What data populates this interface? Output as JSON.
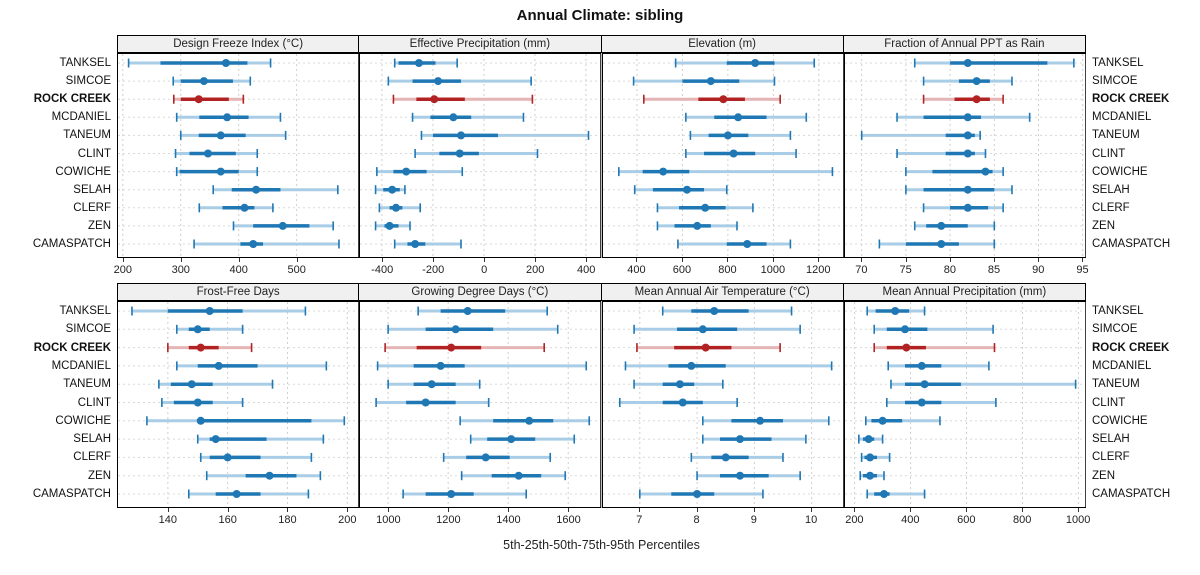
{
  "title": "Annual Climate: sibling",
  "caption": "5th-25th-50th-75th-95th Percentiles",
  "colors": {
    "normal": "#1f77b4",
    "normal_light": "#a9cde6",
    "highlight": "#b22222",
    "highlight_light": "#e5b4b4",
    "grid": "#cfcfcf",
    "panel_border": "#000000",
    "header_bg": "#f0f0f0"
  },
  "chart_data": {
    "type": "dotplot-percentiles",
    "title": "Annual Climate: sibling",
    "xlabel": "5th-25th-50th-75th-95th Percentiles",
    "percentile_labels": [
      "5th",
      "25th",
      "50th",
      "75th",
      "95th"
    ],
    "sites": [
      "TANKSEL",
      "SIMCOE",
      "ROCK CREEK",
      "MCDANIEL",
      "TANEUM",
      "CLINT",
      "COWICHE",
      "SELAH",
      "CLERF",
      "ZEN",
      "CAMASPATCH"
    ],
    "highlight_site": "ROCK CREEK",
    "grid": "dashed horizontal and vertical",
    "panels": [
      {
        "title": "Design Freeze Index (°C)",
        "grid_row": 0,
        "grid_col": 0,
        "xlim": [
          190,
          608
        ],
        "ticks": [
          200,
          300,
          400,
          500
        ],
        "series": [
          {
            "site": "TANKSEL",
            "p": [
              210,
              265,
              378,
              415,
              455
            ]
          },
          {
            "site": "SIMCOE",
            "p": [
              287,
              300,
              340,
              390,
              420
            ]
          },
          {
            "site": "ROCK CREEK",
            "p": [
              288,
              300,
              331,
              383,
              408
            ]
          },
          {
            "site": "MCDANIEL",
            "p": [
              293,
              332,
              380,
              417,
              472
            ]
          },
          {
            "site": "TANEUM",
            "p": [
              300,
              331,
              369,
              412,
              481
            ]
          },
          {
            "site": "CLINT",
            "p": [
              291,
              315,
              347,
              395,
              432
            ]
          },
          {
            "site": "COWICHE",
            "p": [
              293,
              298,
              369,
              400,
              432
            ]
          },
          {
            "site": "SELAH",
            "p": [
              356,
              388,
              430,
              472,
              571
            ]
          },
          {
            "site": "CLERF",
            "p": [
              332,
              372,
              410,
              427,
              459
            ]
          },
          {
            "site": "ZEN",
            "p": [
              391,
              425,
              476,
              522,
              563
            ]
          },
          {
            "site": "CAMASPATCH",
            "p": [
              323,
              403,
              425,
              442,
              573
            ]
          }
        ]
      },
      {
        "title": "Effective Precipitation (mm)",
        "grid_row": 0,
        "grid_col": 1,
        "xlim": [
          -490,
          460
        ],
        "ticks": [
          -400,
          -200,
          0,
          200,
          400
        ],
        "series": [
          {
            "site": "TANKSEL",
            "p": [
              -350,
              -335,
              -255,
              -190,
              -105
            ]
          },
          {
            "site": "SIMCOE",
            "p": [
              -375,
              -280,
              -180,
              -90,
              185
            ]
          },
          {
            "site": "ROCK CREEK",
            "p": [
              -355,
              -265,
              -195,
              -75,
              190
            ]
          },
          {
            "site": "MCDANIEL",
            "p": [
              -280,
              -210,
              -120,
              -50,
              155
            ]
          },
          {
            "site": "TANEUM",
            "p": [
              -245,
              -200,
              -90,
              55,
              410
            ]
          },
          {
            "site": "CLINT",
            "p": [
              -270,
              -175,
              -95,
              -20,
              210
            ]
          },
          {
            "site": "COWICHE",
            "p": [
              -420,
              -355,
              -305,
              -225,
              -85
            ]
          },
          {
            "site": "SELAH",
            "p": [
              -425,
              -395,
              -360,
              -330,
              -310
            ]
          },
          {
            "site": "CLERF",
            "p": [
              -410,
              -370,
              -345,
              -320,
              -250
            ]
          },
          {
            "site": "ZEN",
            "p": [
              -425,
              -390,
              -370,
              -335,
              -290
            ]
          },
          {
            "site": "CAMASPATCH",
            "p": [
              -350,
              -300,
              -270,
              -230,
              -90
            ]
          }
        ]
      },
      {
        "title": "Elevation (m)",
        "grid_row": 0,
        "grid_col": 2,
        "xlim": [
          246,
          1312
        ],
        "ticks": [
          400,
          600,
          800,
          1000,
          1200
        ],
        "series": [
          {
            "site": "TANKSEL",
            "p": [
              570,
              795,
              920,
              1005,
              1180
            ]
          },
          {
            "site": "SIMCOE",
            "p": [
              385,
              600,
              725,
              850,
              1005
            ]
          },
          {
            "site": "ROCK CREEK",
            "p": [
              430,
              670,
              780,
              875,
              1030
            ]
          },
          {
            "site": "MCDANIEL",
            "p": [
              615,
              740,
              845,
              970,
              1145
            ]
          },
          {
            "site": "TANEUM",
            "p": [
              635,
              715,
              800,
              890,
              1075
            ]
          },
          {
            "site": "CLINT",
            "p": [
              615,
              695,
              825,
              920,
              1100
            ]
          },
          {
            "site": "COWICHE",
            "p": [
              320,
              425,
              515,
              630,
              1260
            ]
          },
          {
            "site": "SELAH",
            "p": [
              390,
              470,
              620,
              695,
              795
            ]
          },
          {
            "site": "CLERF",
            "p": [
              490,
              585,
              700,
              790,
              910
            ]
          },
          {
            "site": "ZEN",
            "p": [
              490,
              565,
              665,
              725,
              840
            ]
          },
          {
            "site": "CAMASPATCH",
            "p": [
              580,
              795,
              885,
              970,
              1075
            ]
          }
        ]
      },
      {
        "title": "Fraction of Annual PPT as Rain",
        "grid_row": 0,
        "grid_col": 3,
        "xlim": [
          68,
          95.4
        ],
        "ticks": [
          70,
          75,
          80,
          85,
          90,
          95
        ],
        "series": [
          {
            "site": "TANKSEL",
            "p": [
              76,
              80,
              82,
              91,
              94
            ]
          },
          {
            "site": "SIMCOE",
            "p": [
              77,
              81,
              83,
              84.5,
              87
            ]
          },
          {
            "site": "ROCK CREEK",
            "p": [
              77,
              80.5,
              83,
              84.5,
              86
            ]
          },
          {
            "site": "MCDANIEL",
            "p": [
              74,
              77,
              82,
              83.5,
              89
            ]
          },
          {
            "site": "TANEUM",
            "p": [
              70,
              79.5,
              82,
              82.8,
              83.4
            ]
          },
          {
            "site": "CLINT",
            "p": [
              74,
              79.5,
              82,
              82.8,
              84
            ]
          },
          {
            "site": "COWICHE",
            "p": [
              75,
              78,
              84,
              84.8,
              86
            ]
          },
          {
            "site": "SELAH",
            "p": [
              75,
              77,
              82,
              85,
              87
            ]
          },
          {
            "site": "CLERF",
            "p": [
              77,
              80,
              82,
              84.3,
              86
            ]
          },
          {
            "site": "ZEN",
            "p": [
              76,
              77.3,
              79,
              82,
              85
            ]
          },
          {
            "site": "CAMASPATCH",
            "p": [
              72,
              75,
              79,
              81,
              85
            ]
          }
        ]
      },
      {
        "title": "Frost-Free Days",
        "grid_row": 1,
        "grid_col": 0,
        "xlim": [
          123,
          204
        ],
        "ticks": [
          140,
          160,
          180,
          200
        ],
        "series": [
          {
            "site": "TANKSEL",
            "p": [
              128,
              140,
              154,
              165,
              186
            ]
          },
          {
            "site": "SIMCOE",
            "p": [
              143,
              147,
              150,
              154,
              165
            ]
          },
          {
            "site": "ROCK CREEK",
            "p": [
              140,
              147,
              151,
              157,
              168
            ]
          },
          {
            "site": "MCDANIEL",
            "p": [
              143,
              150,
              157,
              170,
              193
            ]
          },
          {
            "site": "TANEUM",
            "p": [
              137,
              141,
              148,
              155,
              175
            ]
          },
          {
            "site": "CLINT",
            "p": [
              138,
              142,
              150,
              155,
              165
            ]
          },
          {
            "site": "COWICHE",
            "p": [
              133,
              150,
              151,
              188,
              199
            ]
          },
          {
            "site": "SELAH",
            "p": [
              150,
              154,
              156,
              173,
              192
            ]
          },
          {
            "site": "CLERF",
            "p": [
              151,
              154,
              160,
              171,
              188
            ]
          },
          {
            "site": "ZEN",
            "p": [
              153,
              166,
              174,
              183,
              191
            ]
          },
          {
            "site": "CAMASPATCH",
            "p": [
              147,
              156,
              163,
              171,
              187
            ]
          }
        ]
      },
      {
        "title": "Growing Degree Days (°C)",
        "grid_row": 1,
        "grid_col": 1,
        "xlim": [
          903,
          1710
        ],
        "ticks": [
          1000,
          1200,
          1400,
          1600
        ],
        "series": [
          {
            "site": "TANKSEL",
            "p": [
              1100,
              1175,
              1265,
              1390,
              1530
            ]
          },
          {
            "site": "SIMCOE",
            "p": [
              1000,
              1125,
              1225,
              1350,
              1565
            ]
          },
          {
            "site": "ROCK CREEK",
            "p": [
              990,
              1095,
              1210,
              1310,
              1520
            ]
          },
          {
            "site": "MCDANIEL",
            "p": [
              965,
              1085,
              1175,
              1255,
              1660
            ]
          },
          {
            "site": "TANEUM",
            "p": [
              1000,
              1085,
              1145,
              1225,
              1305
            ]
          },
          {
            "site": "CLINT",
            "p": [
              960,
              1060,
              1125,
              1225,
              1335
            ]
          },
          {
            "site": "COWICHE",
            "p": [
              1240,
              1350,
              1470,
              1550,
              1670
            ]
          },
          {
            "site": "SELAH",
            "p": [
              1275,
              1330,
              1410,
              1490,
              1620
            ]
          },
          {
            "site": "CLERF",
            "p": [
              1185,
              1260,
              1325,
              1405,
              1540
            ]
          },
          {
            "site": "ZEN",
            "p": [
              1245,
              1345,
              1435,
              1510,
              1590
            ]
          },
          {
            "site": "CAMASPATCH",
            "p": [
              1050,
              1125,
              1210,
              1285,
              1460
            ]
          }
        ]
      },
      {
        "title": "Mean Annual Air Temperature (°C)",
        "grid_row": 1,
        "grid_col": 2,
        "xlim": [
          6.34,
          10.57
        ],
        "ticks": [
          7,
          8,
          9,
          10
        ],
        "series": [
          {
            "site": "TANKSEL",
            "p": [
              7.4,
              7.9,
              8.3,
              8.9,
              9.65
            ]
          },
          {
            "site": "SIMCOE",
            "p": [
              6.9,
              7.65,
              8.1,
              8.7,
              9.8
            ]
          },
          {
            "site": "ROCK CREEK",
            "p": [
              6.95,
              7.6,
              8.15,
              8.6,
              9.45
            ]
          },
          {
            "site": "MCDANIEL",
            "p": [
              6.75,
              7.5,
              7.9,
              8.5,
              10.35
            ]
          },
          {
            "site": "TANEUM",
            "p": [
              6.9,
              7.4,
              7.7,
              7.95,
              8.45
            ]
          },
          {
            "site": "CLINT",
            "p": [
              6.65,
              7.4,
              7.75,
              8.1,
              8.7
            ]
          },
          {
            "site": "COWICHE",
            "p": [
              8.1,
              8.6,
              9.1,
              9.5,
              10.3
            ]
          },
          {
            "site": "SELAH",
            "p": [
              8.1,
              8.4,
              8.75,
              9.3,
              9.9
            ]
          },
          {
            "site": "CLERF",
            "p": [
              7.9,
              8.25,
              8.5,
              8.9,
              9.5
            ]
          },
          {
            "site": "ZEN",
            "p": [
              8.0,
              8.4,
              8.75,
              9.25,
              9.8
            ]
          },
          {
            "site": "CAMASPATCH",
            "p": [
              7.0,
              7.55,
              8.0,
              8.3,
              9.15
            ]
          }
        ]
      },
      {
        "title": "Mean Annual Precipitation (mm)",
        "grid_row": 1,
        "grid_col": 3,
        "xlim": [
          162,
          1028
        ],
        "ticks": [
          200,
          400,
          600,
          800,
          1000
        ],
        "series": [
          {
            "site": "TANKSEL",
            "p": [
              245,
              275,
              345,
              395,
              450
            ]
          },
          {
            "site": "SIMCOE",
            "p": [
              270,
              315,
              380,
              460,
              695
            ]
          },
          {
            "site": "ROCK CREEK",
            "p": [
              270,
              315,
              385,
              455,
              700
            ]
          },
          {
            "site": "MCDANIEL",
            "p": [
              320,
              380,
              440,
              510,
              680
            ]
          },
          {
            "site": "TANEUM",
            "p": [
              330,
              380,
              450,
              580,
              990
            ]
          },
          {
            "site": "CLINT",
            "p": [
              315,
              380,
              440,
              510,
              705
            ]
          },
          {
            "site": "COWICHE",
            "p": [
              240,
              260,
              300,
              370,
              505
            ]
          },
          {
            "site": "SELAH",
            "p": [
              215,
              230,
              250,
              270,
              300
            ]
          },
          {
            "site": "CLERF",
            "p": [
              225,
              235,
              255,
              280,
              325
            ]
          },
          {
            "site": "ZEN",
            "p": [
              220,
              230,
              255,
              280,
              305
            ]
          },
          {
            "site": "CAMASPATCH",
            "p": [
              245,
              270,
              305,
              325,
              450
            ]
          }
        ]
      }
    ]
  }
}
